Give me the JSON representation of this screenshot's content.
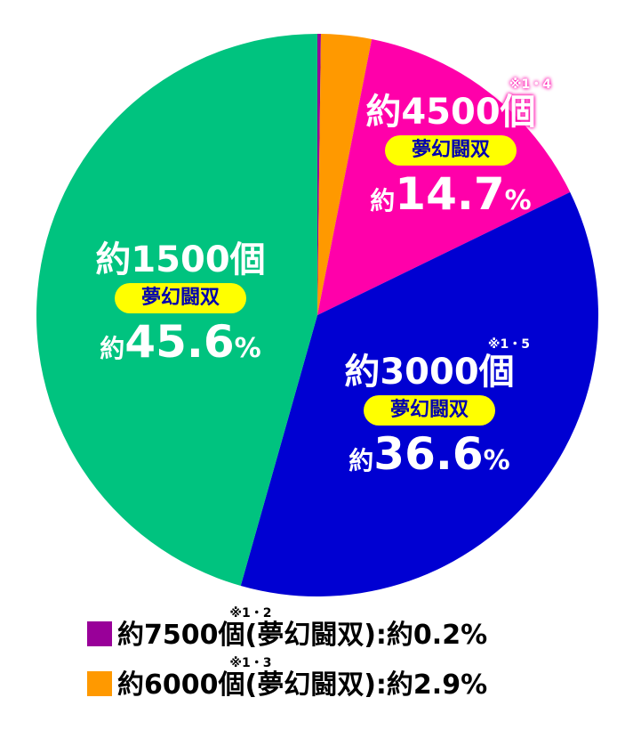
{
  "chart_data": {
    "type": "pie",
    "slices": [
      {
        "count_label": "約7500個",
        "note": "※1・2",
        "category": "夢幻闘双",
        "value": 0.2,
        "color": "#990099"
      },
      {
        "count_label": "約6000個",
        "note": "※1・3",
        "category": "夢幻闘双",
        "value": 2.9,
        "color": "#ff9900"
      },
      {
        "count_label": "約4500個",
        "note": "※1・4",
        "category": "夢幻闘双",
        "value": 14.7,
        "color": "#ff00aa"
      },
      {
        "count_label": "約3000個",
        "note": "※1・5",
        "category": "夢幻闘双",
        "value": 36.6,
        "color": "#0000d2"
      },
      {
        "count_label": "約1500個",
        "note": "",
        "category": "夢幻闘双",
        "value": 45.6,
        "color": "#00c37f"
      }
    ],
    "pct_prefix": "約",
    "pct_unit": "%",
    "highlight_color": "#ffff00",
    "legend": [
      {
        "text": "約7500個",
        "note": "※1・2",
        "rest": "(夢幻闘双):約0.2%",
        "color": "#990099"
      },
      {
        "text": "約6000個",
        "note": "※1・3",
        "rest": "(夢幻闘双):約2.9%",
        "color": "#ff9900"
      }
    ],
    "pct_text": [
      "14.7",
      "36.6",
      "45.6"
    ]
  }
}
